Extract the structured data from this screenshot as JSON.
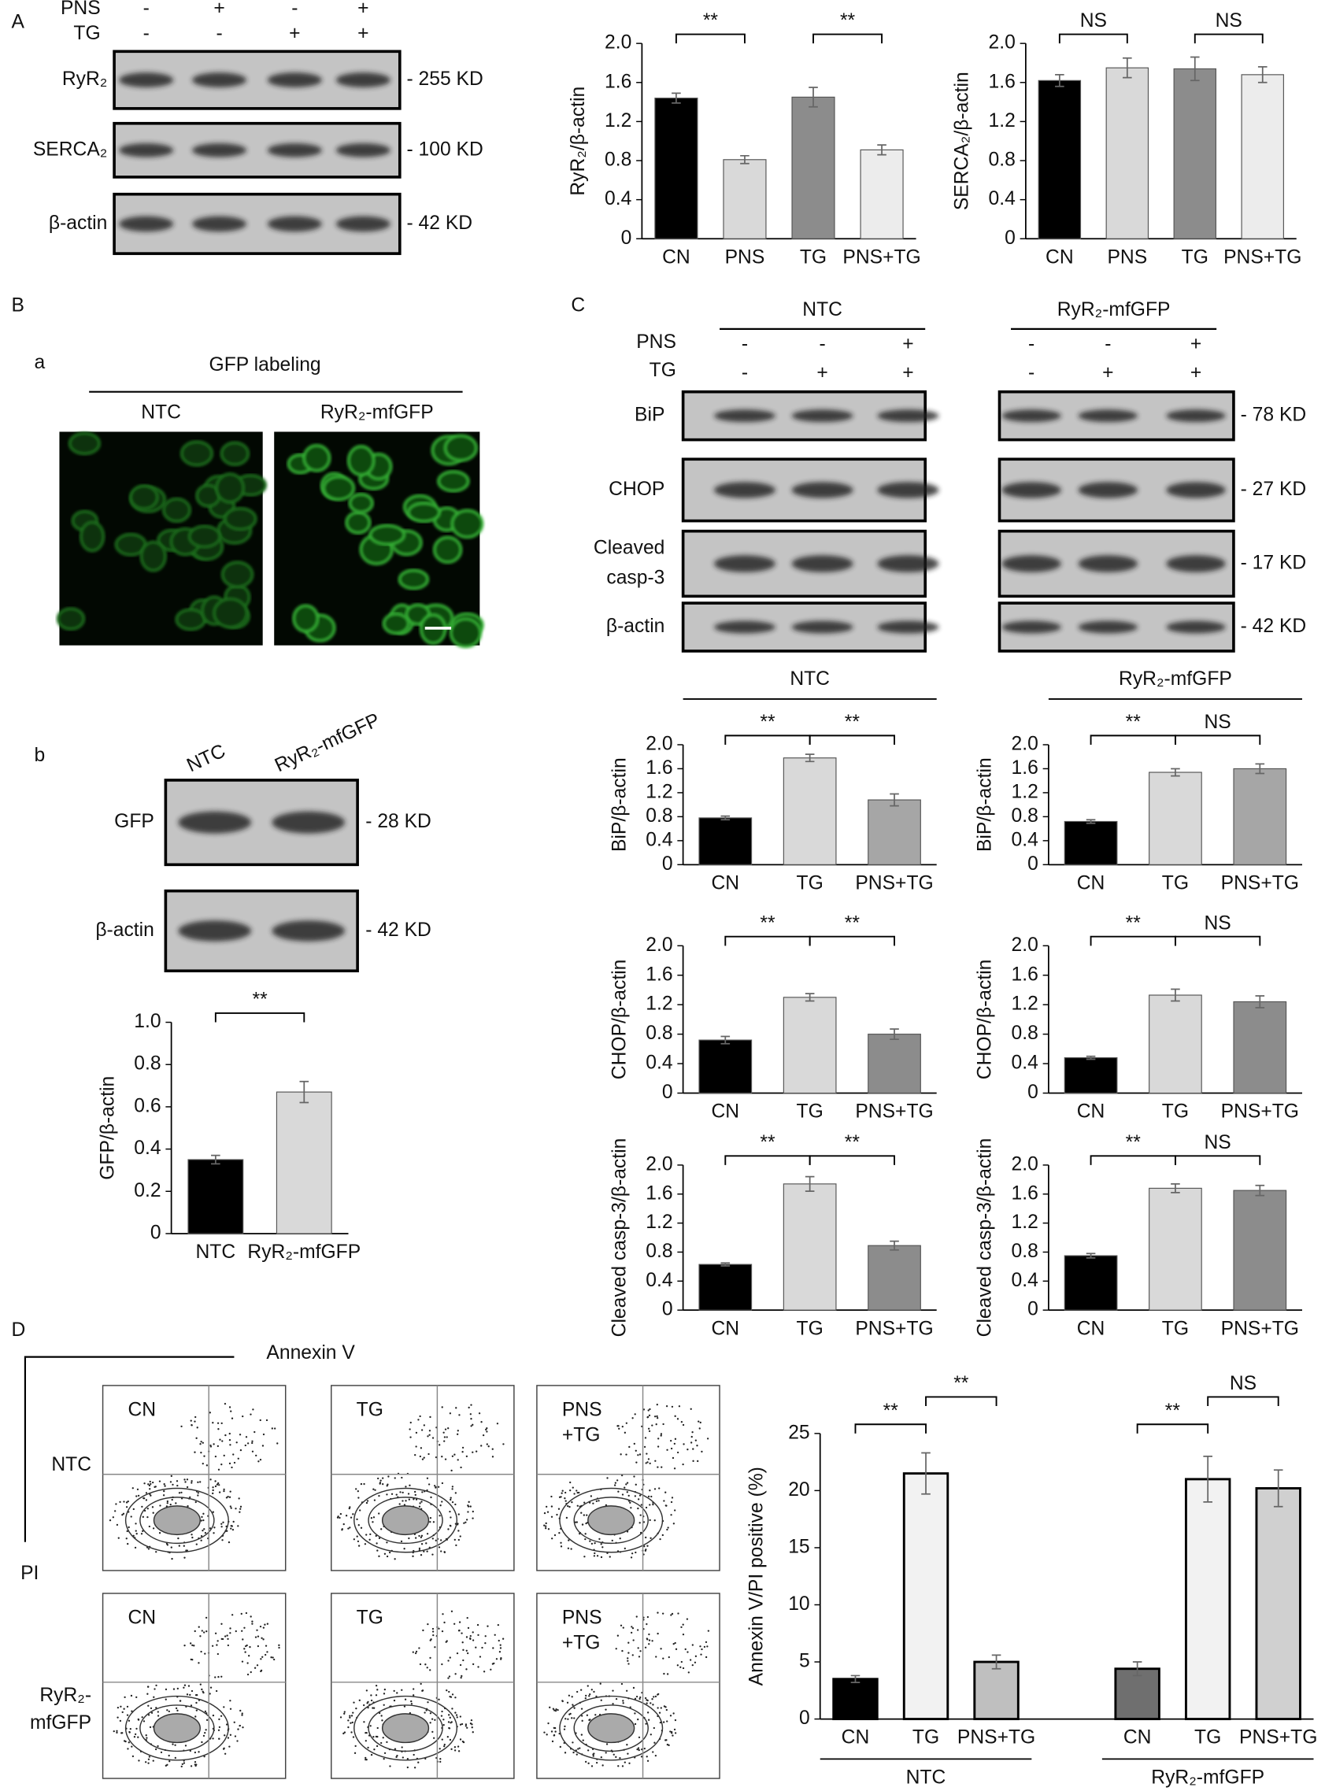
{
  "panel_labels": {
    "A": "A",
    "B": "B",
    "Ba": "a",
    "Bb": "b",
    "C": "C",
    "D": "D"
  },
  "blot_a": {
    "conditions": [
      {
        "name": "PNS",
        "signs": [
          "-",
          "+",
          "-",
          "+"
        ]
      },
      {
        "name": "TG",
        "signs": [
          "-",
          "-",
          "+",
          "+"
        ]
      }
    ],
    "rows": [
      {
        "label": "RyR₂",
        "size": "- 255 KD"
      },
      {
        "label": "SERCA₂",
        "size": "- 100 KD"
      },
      {
        "label": "β-actin",
        "size": "- 42 KD"
      }
    ]
  },
  "gfp_labeling": {
    "title": "GFP labeling",
    "images": [
      "NTC",
      "RyR₂-mfGFP"
    ]
  },
  "blot_b": {
    "lanes": [
      "NTC",
      "RyR₂-mfGFP"
    ],
    "rows": [
      {
        "label": "GFP",
        "size": "- 28 KD"
      },
      {
        "label": "β-actin",
        "size": "- 42 KD"
      }
    ]
  },
  "blot_c": {
    "conditions": [
      "PNS",
      "TG"
    ],
    "groups": [
      {
        "name": "NTC",
        "signs": [
          [
            "-",
            "-",
            "+"
          ],
          [
            "-",
            "+",
            "+"
          ]
        ]
      },
      {
        "name": "RyR₂-mfGFP",
        "signs": [
          [
            "-",
            "-",
            "+"
          ],
          [
            "-",
            "+",
            "+"
          ]
        ]
      }
    ],
    "rows": [
      {
        "label": [
          "BiP"
        ],
        "size": "- 78 KD"
      },
      {
        "label": [
          "CHOP"
        ],
        "size": "- 27 KD"
      },
      {
        "label": [
          "Cleaved",
          "casp-3"
        ],
        "size": "- 17 KD"
      },
      {
        "label": [
          "β-actin"
        ],
        "size": "- 42 KD"
      }
    ]
  },
  "c_titles": [
    "NTC",
    "RyR₂-mfGFP"
  ],
  "flow": {
    "x_axis": "Annexin V",
    "y_axis": "PI",
    "columns": [
      [
        "CN"
      ],
      [
        "TG"
      ],
      [
        "PNS",
        "+TG"
      ]
    ],
    "rows": [
      [
        "NTC"
      ],
      [
        "RyR₂-",
        "mfGFP"
      ]
    ]
  },
  "chart_data": [
    {
      "type": "bar",
      "ylabel": "RyR₂/β-actin",
      "categories": [
        "CN",
        "PNS",
        "TG",
        "PNS+TG"
      ],
      "values": [
        1.44,
        0.81,
        1.45,
        0.91
      ],
      "errors": [
        0.05,
        0.04,
        0.1,
        0.05
      ],
      "colors": [
        "#000000",
        "#d9d9d9",
        "#8c8c8c",
        "#ececec"
      ],
      "ylim": [
        0,
        2
      ],
      "yticks": [
        0,
        0.4,
        0.8,
        1.2,
        1.6,
        {
          "value": 2,
          "label": "2.0"
        }
      ],
      "significance": [
        {
          "pair": [
            "CN",
            "PNS"
          ],
          "label": "**"
        },
        {
          "pair": [
            "TG",
            "PNS+TG"
          ],
          "label": "**"
        }
      ]
    },
    {
      "type": "bar",
      "ylabel": "SERCA₂/β-actin",
      "categories": [
        "CN",
        "PNS",
        "TG",
        "PNS+TG"
      ],
      "values": [
        1.62,
        1.75,
        1.74,
        1.68
      ],
      "errors": [
        0.06,
        0.1,
        0.12,
        0.08
      ],
      "colors": [
        "#000000",
        "#d9d9d9",
        "#8c8c8c",
        "#ececec"
      ],
      "ylim": [
        0,
        2
      ],
      "yticks": [
        0,
        0.4,
        0.8,
        1.2,
        1.6,
        {
          "value": 2,
          "label": "2.0"
        }
      ],
      "significance": [
        {
          "pair": [
            "CN",
            "PNS"
          ],
          "label": "NS"
        },
        {
          "pair": [
            "TG",
            "PNS+TG"
          ],
          "label": "NS"
        }
      ]
    },
    {
      "type": "bar",
      "ylabel": "GFP/β-actin",
      "categories": [
        "NTC",
        "RyR₂-mfGFP"
      ],
      "values": [
        0.35,
        0.67
      ],
      "errors": [
        0.02,
        0.05
      ],
      "colors": [
        "#000000",
        "#d9d9d9"
      ],
      "ylim": [
        0,
        1
      ],
      "yticks": [
        0,
        0.2,
        0.4,
        0.6,
        0.8,
        {
          "value": 1,
          "label": "1.0"
        }
      ],
      "significance": [
        {
          "pair": [
            "NTC",
            "RyR₂-mfGFP"
          ],
          "label": "**"
        }
      ]
    },
    {
      "type": "bar",
      "ylabel": "BiP/β-actin",
      "categories": [
        "CN",
        "TG",
        "PNS+TG"
      ],
      "values": [
        0.78,
        1.78,
        1.08
      ],
      "errors": [
        0.03,
        0.06,
        0.1
      ],
      "colors": [
        "#000000",
        "#d9d9d9",
        "#a6a6a6"
      ],
      "ylim": [
        0,
        2
      ],
      "yticks": [
        0,
        0.4,
        0.8,
        1.2,
        1.6,
        {
          "value": 2,
          "label": "2.0"
        }
      ],
      "significance": [
        {
          "pair": [
            "CN",
            "TG"
          ],
          "label": "**"
        },
        {
          "pair": [
            "TG",
            "PNS+TG"
          ],
          "label": "**"
        }
      ]
    },
    {
      "type": "bar",
      "ylabel": "BiP/β-actin",
      "categories": [
        "CN",
        "TG",
        "PNS+TG"
      ],
      "values": [
        0.72,
        1.54,
        1.6
      ],
      "errors": [
        0.03,
        0.06,
        0.08
      ],
      "colors": [
        "#000000",
        "#d9d9d9",
        "#a6a6a6"
      ],
      "ylim": [
        0,
        2
      ],
      "yticks": [
        0,
        0.4,
        0.8,
        1.2,
        1.6,
        {
          "value": 2,
          "label": "2.0"
        }
      ],
      "significance": [
        {
          "pair": [
            "CN",
            "TG"
          ],
          "label": "**"
        },
        {
          "pair": [
            "TG",
            "PNS+TG"
          ],
          "label": "NS"
        }
      ]
    },
    {
      "type": "bar",
      "ylabel": "CHOP/β-actin",
      "categories": [
        "CN",
        "TG",
        "PNS+TG"
      ],
      "values": [
        0.72,
        1.3,
        0.8
      ],
      "errors": [
        0.05,
        0.05,
        0.07
      ],
      "colors": [
        "#000000",
        "#d9d9d9",
        "#8c8c8c"
      ],
      "ylim": [
        0,
        2
      ],
      "yticks": [
        0,
        0.4,
        0.8,
        1.2,
        1.6,
        {
          "value": 2,
          "label": "2.0"
        }
      ],
      "significance": [
        {
          "pair": [
            "CN",
            "TG"
          ],
          "label": "**"
        },
        {
          "pair": [
            "TG",
            "PNS+TG"
          ],
          "label": "**"
        }
      ]
    },
    {
      "type": "bar",
      "ylabel": "CHOP/β-actin",
      "categories": [
        "CN",
        "TG",
        "PNS+TG"
      ],
      "values": [
        0.48,
        1.33,
        1.24
      ],
      "errors": [
        0.02,
        0.08,
        0.08
      ],
      "colors": [
        "#000000",
        "#d9d9d9",
        "#8c8c8c"
      ],
      "ylim": [
        0,
        2
      ],
      "yticks": [
        0,
        0.4,
        0.8,
        1.2,
        1.6,
        {
          "value": 2,
          "label": "2.0"
        }
      ],
      "significance": [
        {
          "pair": [
            "CN",
            "TG"
          ],
          "label": "**"
        },
        {
          "pair": [
            "TG",
            "PNS+TG"
          ],
          "label": "NS"
        }
      ]
    },
    {
      "type": "bar",
      "ylabel": "Cleaved casp-3/β-actin",
      "categories": [
        "CN",
        "TG",
        "PNS+TG"
      ],
      "values": [
        0.63,
        1.74,
        0.89
      ],
      "errors": [
        0.02,
        0.1,
        0.06
      ],
      "colors": [
        "#000000",
        "#d9d9d9",
        "#8c8c8c"
      ],
      "ylim": [
        0,
        2
      ],
      "yticks": [
        0,
        0.4,
        0.8,
        1.2,
        1.6,
        {
          "value": 2,
          "label": "2.0"
        }
      ],
      "significance": [
        {
          "pair": [
            "CN",
            "TG"
          ],
          "label": "**"
        },
        {
          "pair": [
            "TG",
            "PNS+TG"
          ],
          "label": "**"
        }
      ]
    },
    {
      "type": "bar",
      "ylabel": "Cleaved casp-3/β-actin",
      "categories": [
        "CN",
        "TG",
        "PNS+TG"
      ],
      "values": [
        0.75,
        1.68,
        1.65
      ],
      "errors": [
        0.03,
        0.06,
        0.07
      ],
      "colors": [
        "#000000",
        "#d9d9d9",
        "#8c8c8c"
      ],
      "ylim": [
        0,
        2
      ],
      "yticks": [
        0,
        0.4,
        0.8,
        1.2,
        1.6,
        {
          "value": 2,
          "label": "2.0"
        }
      ],
      "significance": [
        {
          "pair": [
            "CN",
            "TG"
          ],
          "label": "**"
        },
        {
          "pair": [
            "TG",
            "PNS+TG"
          ],
          "label": "NS"
        }
      ]
    },
    {
      "type": "bar",
      "ylabel": "Annexin V/PI positive (%)",
      "outline": true,
      "ylim": [
        0,
        25
      ],
      "yticks": [
        0,
        5,
        10,
        15,
        20,
        25
      ],
      "groups": [
        {
          "name": "NTC",
          "categories": [
            "CN",
            "TG",
            "PNS+TG"
          ],
          "values": [
            3.5,
            21.5,
            5
          ],
          "errors": [
            0.3,
            1.8,
            0.6
          ],
          "colors": [
            "#000000",
            "#f2f2f2",
            "#bfbfbf"
          ],
          "significance": [
            {
              "pair": [
                "CN",
                "TG"
              ],
              "label": "**"
            },
            {
              "pair": [
                "TG",
                "PNS+TG"
              ],
              "label": "**"
            }
          ]
        },
        {
          "name": "RyR₂-mfGFP",
          "categories": [
            "CN",
            "TG",
            "PNS+TG"
          ],
          "values": [
            4.4,
            21,
            20.2
          ],
          "errors": [
            0.6,
            2,
            1.6
          ],
          "colors": [
            "#6f6f6f",
            "#f2f2f2",
            "#d0d0d0"
          ],
          "significance": [
            {
              "pair": [
                "CN",
                "TG"
              ],
              "label": "**"
            },
            {
              "pair": [
                "TG",
                "PNS+TG"
              ],
              "label": "NS"
            }
          ]
        }
      ]
    }
  ]
}
